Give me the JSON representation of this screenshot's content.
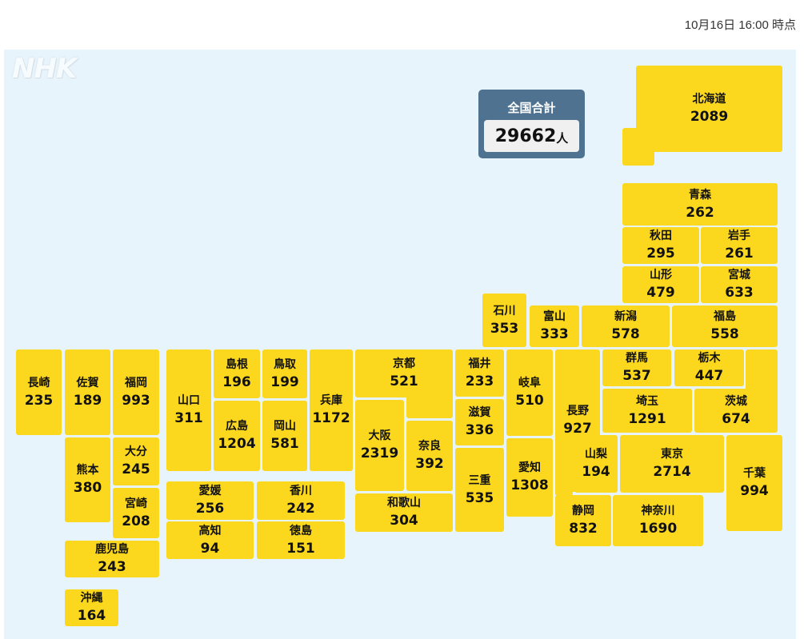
{
  "timestamp": "10月16日 16:00 時点",
  "logo": "NHK",
  "tile_color": "#fbd71d",
  "background_color": "#e8f4fc",
  "total": {
    "label": "全国合計",
    "value": "29662",
    "unit": "人",
    "color": "#4f7290"
  },
  "prefectures": [
    {
      "name": "北海道",
      "value": "2089"
    },
    {
      "name": "青森",
      "value": "262"
    },
    {
      "name": "秋田",
      "value": "295"
    },
    {
      "name": "岩手",
      "value": "261"
    },
    {
      "name": "山形",
      "value": "479"
    },
    {
      "name": "宮城",
      "value": "633"
    },
    {
      "name": "石川",
      "value": "353"
    },
    {
      "name": "富山",
      "value": "333"
    },
    {
      "name": "新潟",
      "value": "578"
    },
    {
      "name": "福島",
      "value": "558"
    },
    {
      "name": "群馬",
      "value": "537"
    },
    {
      "name": "栃木",
      "value": "447"
    },
    {
      "name": "茨城",
      "value": "674"
    },
    {
      "name": "埼玉",
      "value": "1291"
    },
    {
      "name": "福井",
      "value": "233"
    },
    {
      "name": "滋賀",
      "value": "336"
    },
    {
      "name": "三重",
      "value": "535"
    },
    {
      "name": "岐阜",
      "value": "510"
    },
    {
      "name": "愛知",
      "value": "1308"
    },
    {
      "name": "長野",
      "value": "927"
    },
    {
      "name": "山梨",
      "value": "194"
    },
    {
      "name": "東京",
      "value": "2714"
    },
    {
      "name": "千葉",
      "value": "994"
    },
    {
      "name": "静岡",
      "value": "832"
    },
    {
      "name": "神奈川",
      "value": "1690"
    },
    {
      "name": "京都",
      "value": "521"
    },
    {
      "name": "大阪",
      "value": "2319"
    },
    {
      "name": "奈良",
      "value": "392"
    },
    {
      "name": "和歌山",
      "value": "304"
    },
    {
      "name": "兵庫",
      "value": "1172"
    },
    {
      "name": "鳥取",
      "value": "199"
    },
    {
      "name": "島根",
      "value": "196"
    },
    {
      "name": "岡山",
      "value": "581"
    },
    {
      "name": "広島",
      "value": "1204"
    },
    {
      "name": "山口",
      "value": "311"
    },
    {
      "name": "愛媛",
      "value": "256"
    },
    {
      "name": "香川",
      "value": "242"
    },
    {
      "name": "高知",
      "value": "94"
    },
    {
      "name": "徳島",
      "value": "151"
    },
    {
      "name": "長崎",
      "value": "235"
    },
    {
      "name": "佐賀",
      "value": "189"
    },
    {
      "name": "福岡",
      "value": "993"
    },
    {
      "name": "熊本",
      "value": "380"
    },
    {
      "name": "大分",
      "value": "245"
    },
    {
      "name": "宮崎",
      "value": "208"
    },
    {
      "name": "鹿児島",
      "value": "243"
    },
    {
      "name": "沖縄",
      "value": "164"
    }
  ]
}
